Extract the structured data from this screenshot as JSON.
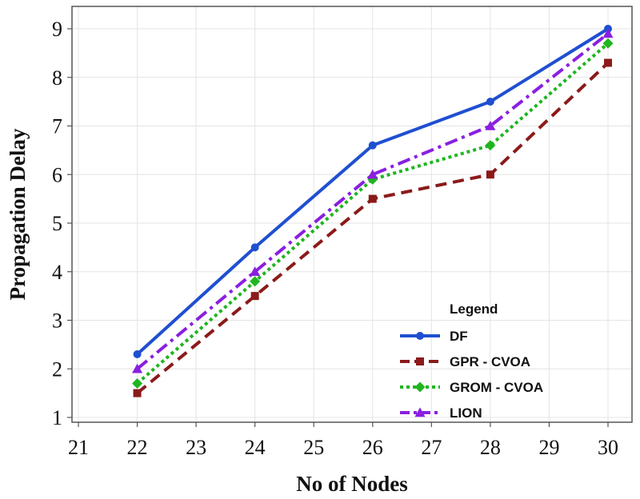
{
  "chart_data": {
    "type": "line",
    "title": "",
    "xlabel": "No of Nodes",
    "ylabel": "Propagation Delay",
    "xlim": [
      21,
      30
    ],
    "ylim": [
      1,
      9
    ],
    "x_ticks": [
      21,
      22,
      23,
      24,
      25,
      26,
      27,
      28,
      29,
      30
    ],
    "y_ticks": [
      1,
      2,
      3,
      4,
      5,
      6,
      7,
      8,
      9
    ],
    "x": [
      22,
      24,
      26,
      28,
      30
    ],
    "grid": true,
    "legend": {
      "title": "Legend",
      "placement": "bottom-right"
    },
    "series": [
      {
        "name": "DF",
        "values": [
          2.3,
          4.5,
          6.6,
          7.5,
          9.0
        ],
        "color": "#1f4fd1",
        "dash": "solid",
        "marker": "circle"
      },
      {
        "name": "GPR - CVOA",
        "values": [
          1.5,
          3.5,
          5.5,
          6.0,
          8.3
        ],
        "color": "#8b1a1a",
        "dash": "dashed",
        "marker": "square"
      },
      {
        "name": "GROM - CVOA",
        "values": [
          1.7,
          3.8,
          5.9,
          6.6,
          8.7
        ],
        "color": "#1fb51f",
        "dash": "dotted",
        "marker": "diamond"
      },
      {
        "name": "LION",
        "values": [
          2.0,
          4.0,
          6.0,
          7.0,
          8.9
        ],
        "color": "#8a1fe0",
        "dash": "dashdot",
        "marker": "triangle"
      }
    ]
  }
}
